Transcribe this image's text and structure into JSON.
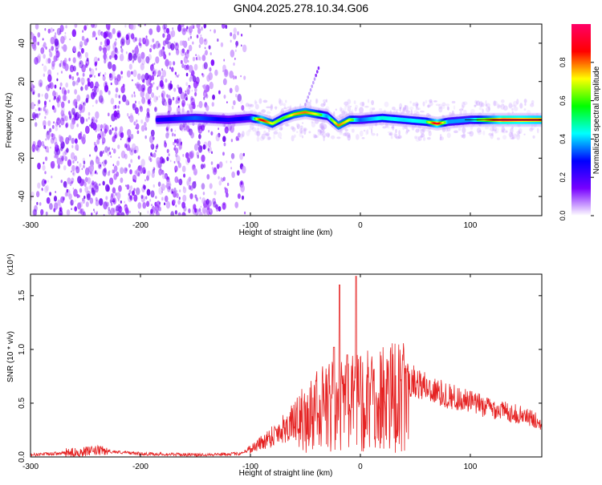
{
  "title": "GN04.2025.278.10.34.G06",
  "chart_data": [
    {
      "type": "heatmap",
      "xlabel": "Height of straight line (km)",
      "ylabel": "Frequency (Hz)",
      "xlim": [
        -300,
        165
      ],
      "ylim": [
        -50,
        50
      ],
      "xticks": [
        -300,
        -200,
        -100,
        0,
        100
      ],
      "yticks": [
        -40,
        -20,
        0,
        20,
        40
      ],
      "colorbar": {
        "label": "Normalized spectral amplitude",
        "range": [
          0.0,
          1.0
        ],
        "ticks": [
          0.0,
          0.2,
          0.4,
          0.6,
          0.8
        ],
        "colors": [
          "#ffffff",
          "#7700ff",
          "#0000ff",
          "#00ffff",
          "#00ff00",
          "#ffff00",
          "#ff0000",
          "#ff0066"
        ]
      },
      "noise_region_x": [
        -300,
        -105
      ],
      "signal_band": {
        "x": [
          -185,
          -150,
          -120,
          -100,
          -90,
          -80,
          -70,
          -60,
          -50,
          -40,
          -30,
          -20,
          -10,
          0,
          20,
          40,
          60,
          70,
          80,
          100,
          130,
          165
        ],
        "frequency": [
          0,
          1,
          0,
          1,
          0,
          -2,
          1,
          3,
          4,
          3,
          2,
          -3,
          0,
          0,
          1,
          0,
          -1,
          -2,
          -1,
          0,
          0,
          0
        ],
        "amplitude": [
          0.35,
          0.45,
          0.35,
          0.4,
          0.9,
          0.7,
          0.6,
          0.75,
          0.8,
          0.7,
          0.5,
          0.8,
          0.7,
          0.45,
          0.6,
          0.55,
          0.6,
          0.95,
          0.5,
          0.5,
          1.0,
          0.9
        ]
      },
      "streak": {
        "x": [
          -50,
          -38
        ],
        "frequency": [
          8,
          27
        ]
      }
    },
    {
      "type": "line",
      "xlabel": "Height of straight line (km)",
      "ylabel": "SNR (10 * v/v)",
      "multiplier": "(x10⁴)",
      "xlim": [
        -300,
        165
      ],
      "ylim": [
        0,
        1.7
      ],
      "xticks": [
        -300,
        -200,
        -100,
        0,
        100
      ],
      "yticks": [
        0.0,
        0.5,
        1.0,
        1.5
      ],
      "ytick_labels": [
        "0.0",
        "0.5",
        "1.0",
        "1.5"
      ],
      "color": "#e52222",
      "series": [
        {
          "x": [
            -300,
            -260,
            -240,
            -200,
            -150,
            -110,
            -95,
            -80,
            -70,
            -60,
            -50,
            -40,
            -30,
            -20,
            -10,
            0,
            10,
            30,
            50,
            70,
            90,
            110,
            130,
            150,
            165
          ],
          "y": [
            0.02,
            0.04,
            0.06,
            0.03,
            0.02,
            0.03,
            0.1,
            0.2,
            0.27,
            0.33,
            0.45,
            0.56,
            0.62,
            0.6,
            0.65,
            0.66,
            0.72,
            0.76,
            0.7,
            0.6,
            0.54,
            0.48,
            0.43,
            0.38,
            0.32
          ]
        }
      ],
      "spikes": [
        {
          "x": -24,
          "y": 1.02
        },
        {
          "x": -19,
          "y": 1.6
        },
        {
          "x": -4,
          "y": 1.68
        },
        {
          "x": -12,
          "y": 0.95
        }
      ]
    }
  ]
}
